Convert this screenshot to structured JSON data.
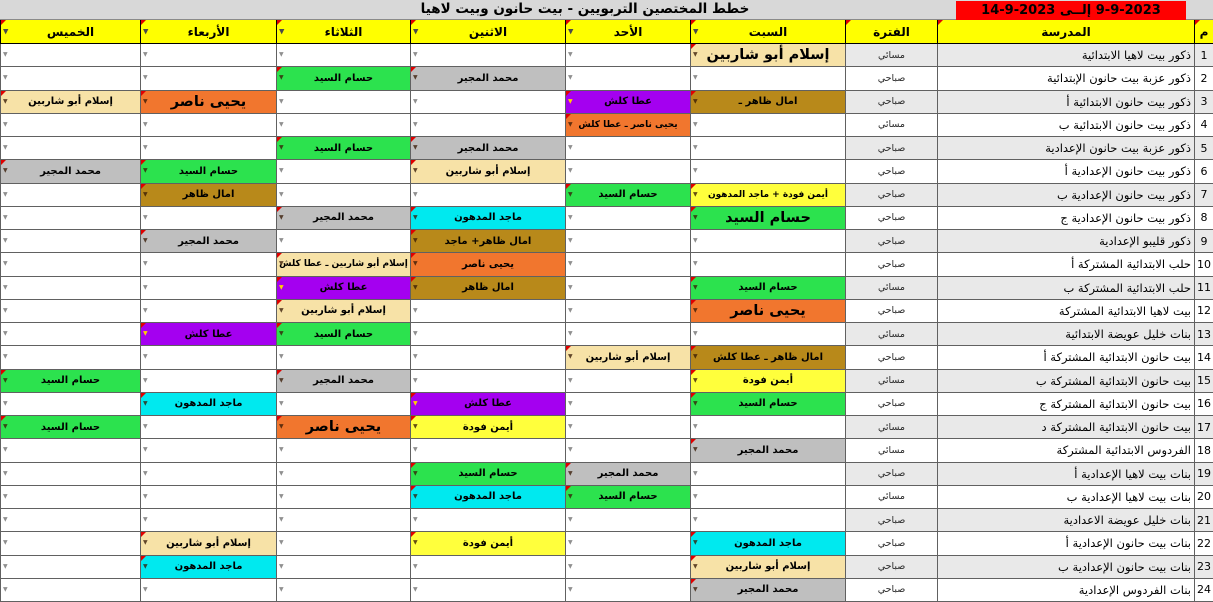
{
  "title": "خطط المختصين التربويين - بيت حانون وبيت لاهيا",
  "date_range": "9-9-2023   إلــى   2023-9-14",
  "columns": {
    "num": "م",
    "school": "المدرسة",
    "period": "الفترة",
    "days": [
      {
        "key": "sat",
        "label": "السبت"
      },
      {
        "key": "sun",
        "label": "الأحد"
      },
      {
        "key": "mon",
        "label": "الاثنين"
      },
      {
        "key": "tue",
        "label": "الثلاثاء"
      },
      {
        "key": "wed",
        "label": "الأربعاء"
      },
      {
        "key": "thu",
        "label": "الخميس"
      }
    ]
  },
  "palette": {
    "tan": "#f7e2a7",
    "green": "#2ce24e",
    "gray": "#bfbfbf",
    "orange": "#f1762e",
    "purple": "#a400f0",
    "yellow": "#ffff3c",
    "cyan": "#00e9ef",
    "dgold": "#b8891a",
    "header_yellow": "#ffff00",
    "date_red": "#ff0000",
    "stripe_gray": "#e9e9e9",
    "titlebar_gray": "#d8d8d8"
  },
  "rows": [
    {
      "n": 1,
      "school": "ذكور بيت لاهيا الابتدائية",
      "period": "مسائي",
      "cells": {
        "sat": {
          "t": "إسلام أبو شاربين",
          "c": "tan",
          "big": true
        }
      }
    },
    {
      "n": 2,
      "school": "ذكور عزبة بيت حانون الإبتدائية",
      "period": "صباحي",
      "cells": {
        "mon": {
          "t": "محمد المجير",
          "c": "gray"
        },
        "tue": {
          "t": "حسام السيد",
          "c": "green"
        }
      }
    },
    {
      "n": 3,
      "school": "ذكور بيت حانون الابتدائية أ",
      "period": "صباحي",
      "cells": {
        "sat": {
          "t": "امال ظاهر ـ",
          "c": "dgold"
        },
        "sun": {
          "t": "عطا كلش",
          "c": "purple"
        },
        "wed": {
          "t": "يحيى ناصر",
          "c": "orange",
          "big": true
        },
        "thu": {
          "t": "إسلام أبو شاربين",
          "c": "tan"
        }
      }
    },
    {
      "n": 4,
      "school": "ذكور بيت حانون الابتدائية ب",
      "period": "مسائي",
      "cells": {
        "sun": {
          "t": "يحيى ناصر ـ عطا كلش",
          "c": "orange",
          "sm": true
        }
      }
    },
    {
      "n": 5,
      "school": "ذكور عزبة بيت حانون الإعدادية",
      "period": "صباحي",
      "cells": {
        "mon": {
          "t": "محمد المجير",
          "c": "gray"
        },
        "tue": {
          "t": "حسام السيد",
          "c": "green"
        }
      }
    },
    {
      "n": 6,
      "school": "ذكور بيت حانون الإعدادية أ",
      "period": "صباحي",
      "cells": {
        "mon": {
          "t": "إسلام أبو شاربين",
          "c": "tan"
        },
        "wed": {
          "t": "حسام السيد",
          "c": "green"
        },
        "thu": {
          "t": "محمد المجير",
          "c": "gray"
        }
      }
    },
    {
      "n": 7,
      "school": "ذكور بيت حانون الإعدادية ب",
      "period": "صباحي",
      "cells": {
        "sat": {
          "t": "أيمن فودة + ماجد المدهون",
          "c": "yellow",
          "sm": true
        },
        "sun": {
          "t": "حسام السيد",
          "c": "green"
        },
        "wed": {
          "t": "امال ظاهر",
          "c": "dgold"
        }
      }
    },
    {
      "n": 8,
      "school": "ذكور بيت حانون الإعدادية ج",
      "period": "صباحي",
      "cells": {
        "sat": {
          "t": "حسام السيد",
          "c": "green",
          "big": true
        },
        "mon": {
          "t": "ماجد المدهون",
          "c": "cyan"
        },
        "tue": {
          "t": "محمد المجير",
          "c": "gray"
        }
      }
    },
    {
      "n": 9,
      "school": "ذكور قليبو الإعدادية",
      "period": "صباحي",
      "cells": {
        "mon": {
          "t": "امال ظاهر+ ماجد",
          "c": "dgold"
        },
        "wed": {
          "t": "محمد المجير",
          "c": "gray"
        }
      }
    },
    {
      "n": 10,
      "school": "حلب الابتدائية المشتركة أ",
      "period": "صباحي",
      "cells": {
        "mon": {
          "t": "يحيى ناصر",
          "c": "orange"
        },
        "tue": {
          "t": "إسلام أبو شاربين ـ عطا كلش",
          "c": "tan",
          "sm": true
        }
      }
    },
    {
      "n": 11,
      "school": "حلب الابتدائية المشتركة ب",
      "period": "مسائي",
      "cells": {
        "sat": {
          "t": "حسام السيد",
          "c": "green"
        },
        "mon": {
          "t": "امال ظاهر",
          "c": "dgold"
        },
        "tue": {
          "t": "عطا كلش",
          "c": "purple"
        }
      }
    },
    {
      "n": 12,
      "school": "بيت لاهيا الابتدائية المشتركة",
      "period": "صباحي",
      "cells": {
        "sat": {
          "t": "يحيى ناصر",
          "c": "orange",
          "big": true
        },
        "tue": {
          "t": "إسلام أبو شاربين",
          "c": "tan"
        }
      }
    },
    {
      "n": 13,
      "school": "بنات خليل عويضة الابتدائية",
      "period": "مسائي",
      "cells": {
        "tue": {
          "t": "حسام السيد",
          "c": "green"
        },
        "wed": {
          "t": "عطا كلش",
          "c": "purple"
        }
      }
    },
    {
      "n": 14,
      "school": "بيت حانون الابتدائية المشتركة أ",
      "period": "صباحي",
      "cells": {
        "sat": {
          "t": "امال ظاهر ـ عطا كلش",
          "c": "dgold"
        },
        "sun": {
          "t": "إسلام أبو شاربين",
          "c": "tan"
        }
      }
    },
    {
      "n": 15,
      "school": "بيت حانون الابتدائية المشتركة ب",
      "period": "مسائي",
      "cells": {
        "sat": {
          "t": "أيمن فودة",
          "c": "yellow"
        },
        "tue": {
          "t": "محمد المجير",
          "c": "gray"
        },
        "thu": {
          "t": "حسام السيد",
          "c": "green"
        }
      }
    },
    {
      "n": 16,
      "school": "بيت حانون الابتدائية المشتركة ج",
      "period": "صباحي",
      "cells": {
        "sat": {
          "t": "حسام السيد",
          "c": "green"
        },
        "mon": {
          "t": "عطا كلش",
          "c": "purple"
        },
        "wed": {
          "t": "ماجد المدهون",
          "c": "cyan"
        }
      }
    },
    {
      "n": 17,
      "school": "بيت حانون الابتدائية المشتركة د",
      "period": "مسائي",
      "cells": {
        "mon": {
          "t": "أيمن فودة",
          "c": "yellow"
        },
        "tue": {
          "t": "يحيى ناصر",
          "c": "orange",
          "big": true
        },
        "thu": {
          "t": "حسام السيد",
          "c": "green"
        }
      }
    },
    {
      "n": 18,
      "school": "الفردوس الابتدائية المشتركة",
      "period": "مسائي",
      "cells": {
        "sat": {
          "t": "محمد المجير",
          "c": "gray"
        }
      }
    },
    {
      "n": 19,
      "school": "بنات بيت لاهيا الإعدادية أ",
      "period": "صباحي",
      "cells": {
        "sun": {
          "t": "محمد المجير",
          "c": "gray"
        },
        "mon": {
          "t": "حسام السيد",
          "c": "green"
        }
      }
    },
    {
      "n": 20,
      "school": "بنات بيت لاهيا الإعدادية ب",
      "period": "مسائي",
      "cells": {
        "sun": {
          "t": "حسام السيد",
          "c": "green"
        },
        "mon": {
          "t": "ماجد المدهون",
          "c": "cyan"
        }
      }
    },
    {
      "n": 21,
      "school": "بنات خليل عويضة الاعدادية",
      "period": "صباحي",
      "cells": {}
    },
    {
      "n": 22,
      "school": "بنات بيت حانون الإعدادية أ",
      "period": "صباحي",
      "cells": {
        "sat": {
          "t": "ماجد المدهون",
          "c": "cyan"
        },
        "mon": {
          "t": "أيمن فودة",
          "c": "yellow"
        },
        "wed": {
          "t": "إسلام أبو شاربين",
          "c": "tan"
        }
      }
    },
    {
      "n": 23,
      "school": "بنات بيت حانون الإعدادية ب",
      "period": "صباحي",
      "cells": {
        "sat": {
          "t": "إسلام أبو شاربين",
          "c": "tan"
        },
        "wed": {
          "t": "ماجد المدهون",
          "c": "cyan"
        }
      }
    },
    {
      "n": 24,
      "school": "بنات الفردوس الإعدادية",
      "period": "صباحي",
      "cells": {
        "sat": {
          "t": "محمد المجير",
          "c": "gray"
        }
      }
    }
  ]
}
